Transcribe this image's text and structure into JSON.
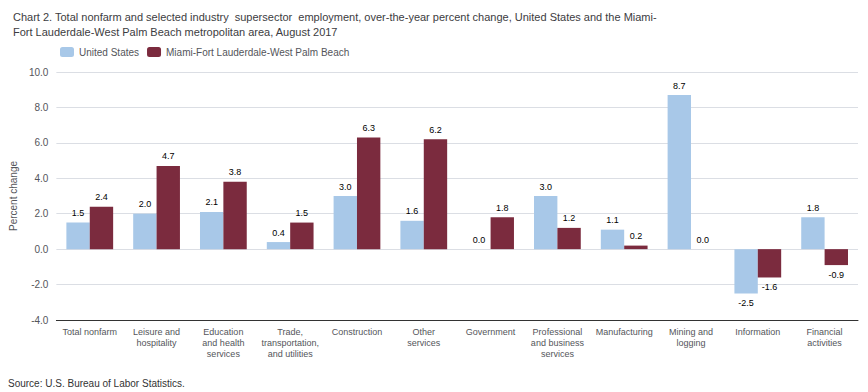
{
  "chart_data": {
    "type": "bar",
    "title": "Chart 2. Total nonfarm and selected industry  supersector  employment, over-the-year percent change, United States and the Miami-\nFort Lauderdale-West Palm Beach metropolitan area, August 2017",
    "ylabel": "Percent change",
    "categories": [
      "Total nonfarm",
      "Leisure and\nhospitality",
      "Education\nand health\nservices",
      "Trade,\ntransportation,\nand utilities",
      "Construction",
      "Other\nservices",
      "Government",
      "Professional\nand business\nservices",
      "Manufacturing",
      "Mining and\nlogging",
      "Information",
      "Financial\nactivities"
    ],
    "series": [
      {
        "name": "United States",
        "color": "#a8c8e8",
        "values": [
          1.5,
          2.0,
          2.1,
          0.4,
          3.0,
          1.6,
          0.0,
          3.0,
          1.1,
          8.7,
          -2.5,
          1.8
        ],
        "value_labels": [
          "1.5",
          "2.0",
          "2.1",
          "0.4",
          "3.0",
          "1.6",
          "0.0",
          "3.0",
          "1.1",
          "8.7",
          "-2.5",
          "1.8"
        ]
      },
      {
        "name": "Miami-Fort Lauderdale-West Palm Beach",
        "color": "#7b2b3e",
        "values": [
          2.4,
          4.7,
          3.8,
          1.5,
          6.3,
          6.2,
          1.8,
          1.2,
          0.2,
          0.0,
          -1.6,
          -0.9
        ],
        "value_labels": [
          "2.4",
          "4.7",
          "3.8",
          "1.5",
          "6.3",
          "6.2",
          "1.8",
          "1.2",
          "0.2",
          "0.0",
          "-1.6",
          "-0.9"
        ]
      }
    ],
    "ylim": [
      -4.0,
      10.0
    ],
    "yticks": [
      {
        "value": -4.0,
        "label": "-4.0"
      },
      {
        "value": -2.0,
        "label": "-2.0"
      },
      {
        "value": 0.0,
        "label": "0.0"
      },
      {
        "value": 2.0,
        "label": "2.0"
      },
      {
        "value": 4.0,
        "label": "4.0"
      },
      {
        "value": 6.0,
        "label": "6.0"
      },
      {
        "value": 8.0,
        "label": "8.0"
      },
      {
        "value": 10.0,
        "label": "10.0"
      }
    ],
    "grid": true,
    "legend": "upper left",
    "data_labels": true,
    "annotations": [
      "Source: U.S. Bureau of Labor Statistics."
    ]
  }
}
